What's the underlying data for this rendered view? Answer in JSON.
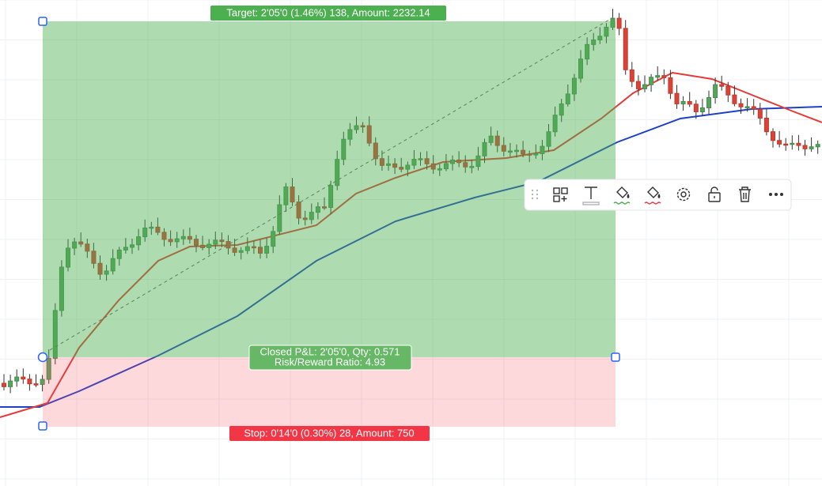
{
  "position": {
    "target_label": "Target: 2'05'0 (1.46%) 138, Amount: 2232.14",
    "closed_pnl": "Closed P&L: 2'05'0, Qty: 0.571",
    "risk_reward": "Risk/Reward Ratio: 4.93",
    "stop_label": "Stop: 0'14'0 (0.30%) 28, Amount: 750"
  }
}
